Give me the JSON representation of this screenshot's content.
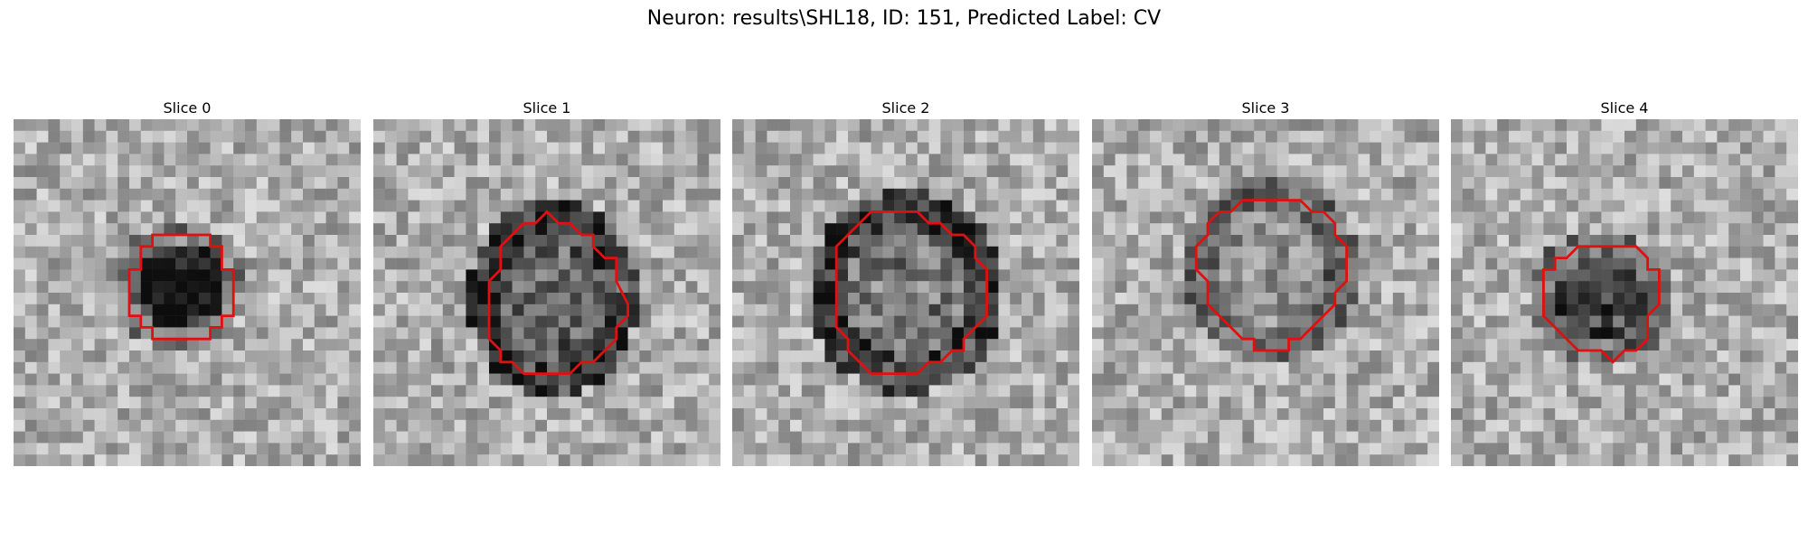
{
  "figure": {
    "title": "Neuron: results\\SHL18, ID: 151, Predicted Label: CV"
  },
  "slices": [
    {
      "label": "Slice 0",
      "contour_color": "#e01010",
      "seed": 11,
      "center_dark": 0.7,
      "ring_dark": 0.25
    },
    {
      "label": "Slice 1",
      "contour_color": "#e01010",
      "seed": 23,
      "center_dark": 0.35,
      "ring_dark": 0.55
    },
    {
      "label": "Slice 2",
      "contour_color": "#e01010",
      "seed": 37,
      "center_dark": 0.25,
      "ring_dark": 0.55
    },
    {
      "label": "Slice 3",
      "contour_color": "#e01010",
      "seed": 49,
      "center_dark": 0.15,
      "ring_dark": 0.35
    },
    {
      "label": "Slice 4",
      "contour_color": "#e01010",
      "seed": 61,
      "center_dark": 0.55,
      "ring_dark": 0.3
    }
  ]
}
